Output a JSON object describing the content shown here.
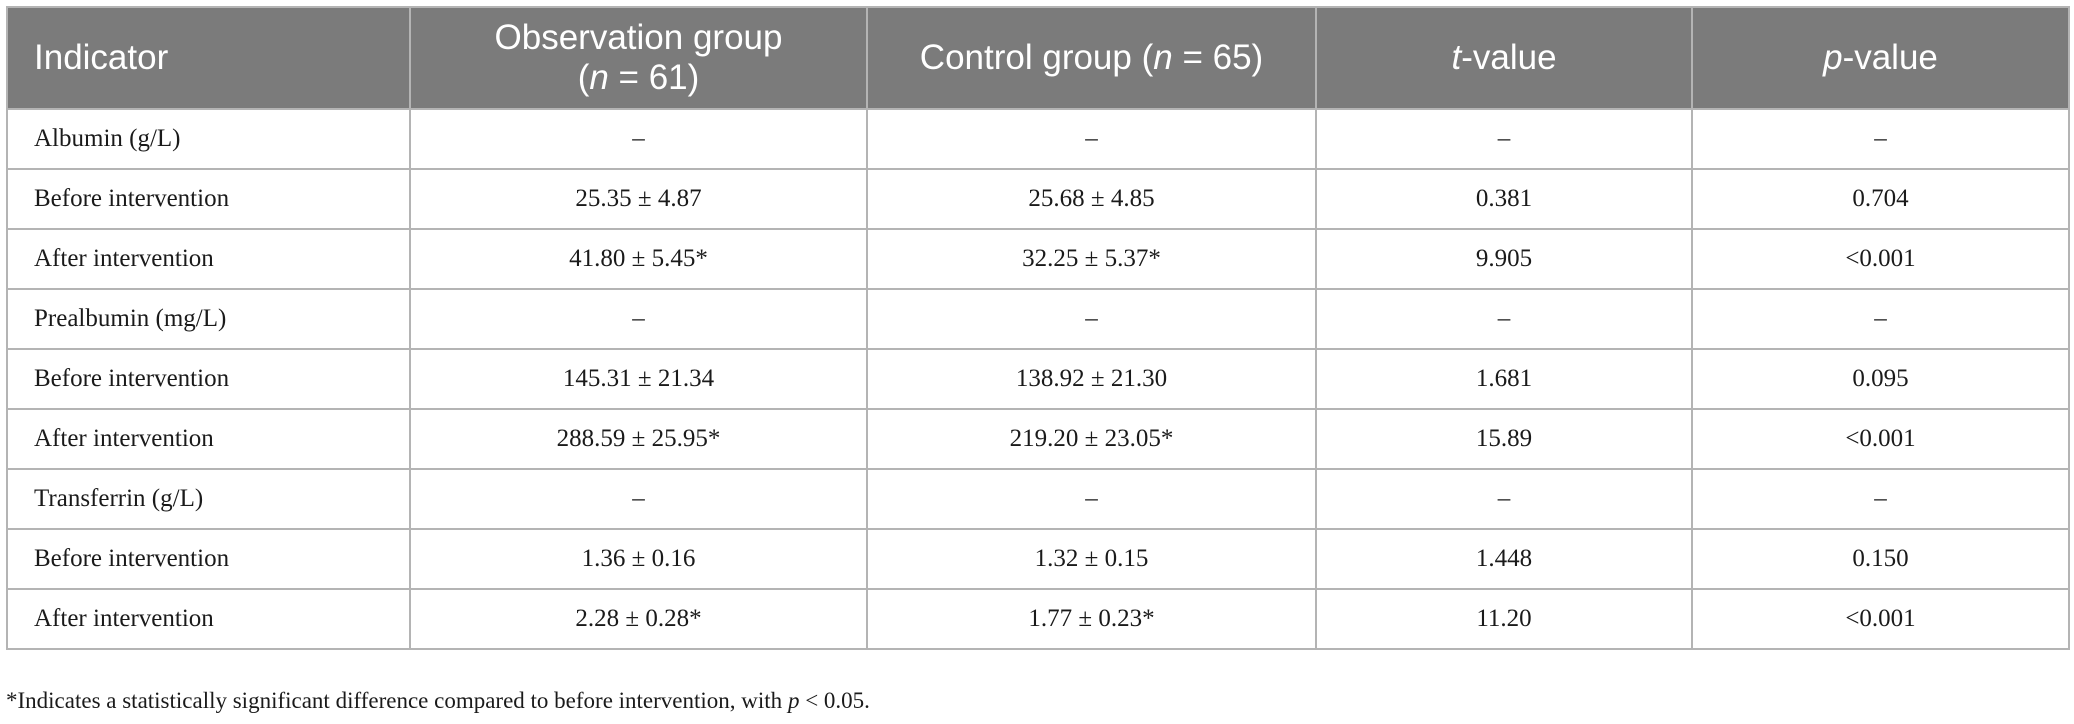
{
  "table": {
    "headers": {
      "indicator": "Indicator",
      "observation": {
        "label": "Observation group",
        "n_var": "n",
        "n_rest": " = 61)"
      },
      "control": {
        "label_before": "Control group (",
        "n_var": "n",
        "label_after": " = 65)"
      },
      "t": {
        "var": "t",
        "rest": "-value"
      },
      "p": {
        "var": "p",
        "rest": "-value"
      }
    },
    "rows": [
      {
        "indicator": "Albumin (g/L)",
        "observation": "–",
        "control": "–",
        "t": "–",
        "p": "–"
      },
      {
        "indicator": "Before intervention",
        "observation": "25.35 ± 4.87",
        "control": "25.68 ± 4.85",
        "t": "0.381",
        "p": "0.704"
      },
      {
        "indicator": "After intervention",
        "observation": "41.80 ± 5.45*",
        "control": "32.25 ± 5.37*",
        "t": "9.905",
        "p": "<0.001"
      },
      {
        "indicator": "Prealbumin (mg/L)",
        "observation": "–",
        "control": "–",
        "t": "–",
        "p": "–"
      },
      {
        "indicator": "Before intervention",
        "observation": "145.31 ± 21.34",
        "control": "138.92 ± 21.30",
        "t": "1.681",
        "p": "0.095"
      },
      {
        "indicator": "After intervention",
        "observation": "288.59 ± 25.95*",
        "control": "219.20 ± 23.05*",
        "t": "15.89",
        "p": "<0.001"
      },
      {
        "indicator": "Transferrin (g/L)",
        "observation": "–",
        "control": "–",
        "t": "–",
        "p": "–"
      },
      {
        "indicator": "Before intervention",
        "observation": "1.36 ± 0.16",
        "control": "1.32 ± 0.15",
        "t": "1.448",
        "p": "0.150"
      },
      {
        "indicator": "After intervention",
        "observation": "2.28 ± 0.28*",
        "control": "1.77 ± 0.23*",
        "t": "11.20",
        "p": "<0.001"
      }
    ]
  },
  "footnote": {
    "text_before": "*Indicates a statistically significant difference compared to before intervention, with ",
    "var": "p",
    "text_after": " < 0.05."
  },
  "colors": {
    "header_bg": "#7b7b7b",
    "header_text": "#ffffff",
    "border": "#b4b4b4"
  }
}
